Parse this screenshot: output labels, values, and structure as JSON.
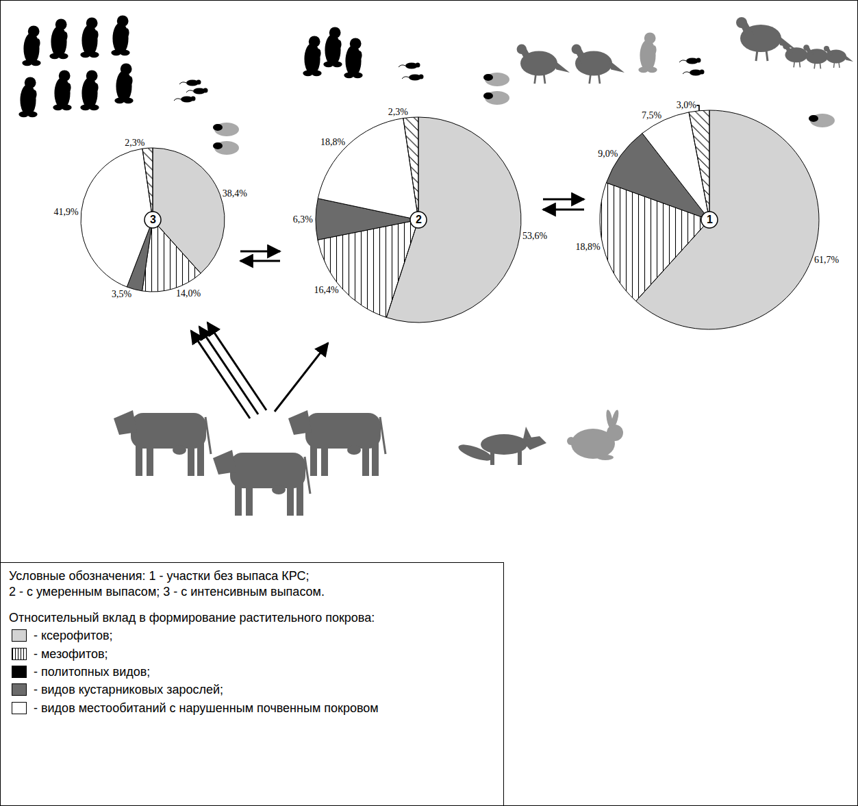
{
  "chart_data": [
    {
      "type": "pie",
      "title": "3",
      "categories": [
        "ксерофитов",
        "мезофитов",
        "видов кустарниковых зарослей",
        "видов местообитаний с нарушенным почвенным покровом",
        "политопных видов"
      ],
      "values": [
        38.4,
        14.0,
        3.5,
        41.9,
        2.3
      ],
      "value_labels": [
        "38,4%",
        "14,0%",
        "3,5%",
        "41,9%",
        "2,3%"
      ],
      "colors": [
        "#d3d3d3",
        "#ffffff",
        "#6b6b6b",
        "#ffffff",
        "#000000"
      ],
      "data_labels": true
    },
    {
      "type": "pie",
      "title": "2",
      "categories": [
        "ксерофитов",
        "мезофитов",
        "видов кустарниковых зарослей",
        "видов местообитаний с нарушенным почвенным покровом",
        "политопных видов"
      ],
      "values": [
        53.6,
        16.4,
        6.3,
        18.8,
        2.3
      ],
      "value_labels": [
        "53,6%",
        "16,4%",
        "6,3%",
        "18,8%",
        "2,3%"
      ],
      "colors": [
        "#d3d3d3",
        "#ffffff",
        "#6b6b6b",
        "#ffffff",
        "#000000"
      ],
      "data_labels": true
    },
    {
      "type": "pie",
      "title": "1",
      "categories": [
        "ксерофитов",
        "мезофитов",
        "видов кустарниковых зарослей",
        "видов местообитаний с нарушенным почвенным покровом",
        "политопных видов"
      ],
      "values": [
        61.7,
        18.8,
        9.0,
        7.5,
        3.0
      ],
      "value_labels": [
        "61,7%",
        "18,8%",
        "9,0%",
        "7,5%",
        "3,0%"
      ],
      "colors": [
        "#d3d3d3",
        "#ffffff",
        "#6b6b6b",
        "#ffffff",
        "#000000"
      ],
      "data_labels": true
    }
  ],
  "key": {
    "lines": [
      "Условные обозначения: 1 - участки без выпаса КРС;",
      "2 - с умеренным выпасом; 3 - с интенсивным выпасом."
    ],
    "heading": "Относительный вклад в формирование растительного покрова:",
    "items": [
      {
        "category": "ксерофитов",
        "label": "- ксерофитов;"
      },
      {
        "category": "мезофитов",
        "label": "- мезофитов;"
      },
      {
        "category": "политопных видов",
        "label": "- политопных видов;"
      },
      {
        "category": "видов кустарниковых зарослей",
        "label": "- видов кустарниковых зарослей;"
      },
      {
        "category": "видов местообитаний с нарушенным почвенным покровом",
        "label": "- видов местообитаний с нарушенным почвенным покровом"
      }
    ]
  }
}
